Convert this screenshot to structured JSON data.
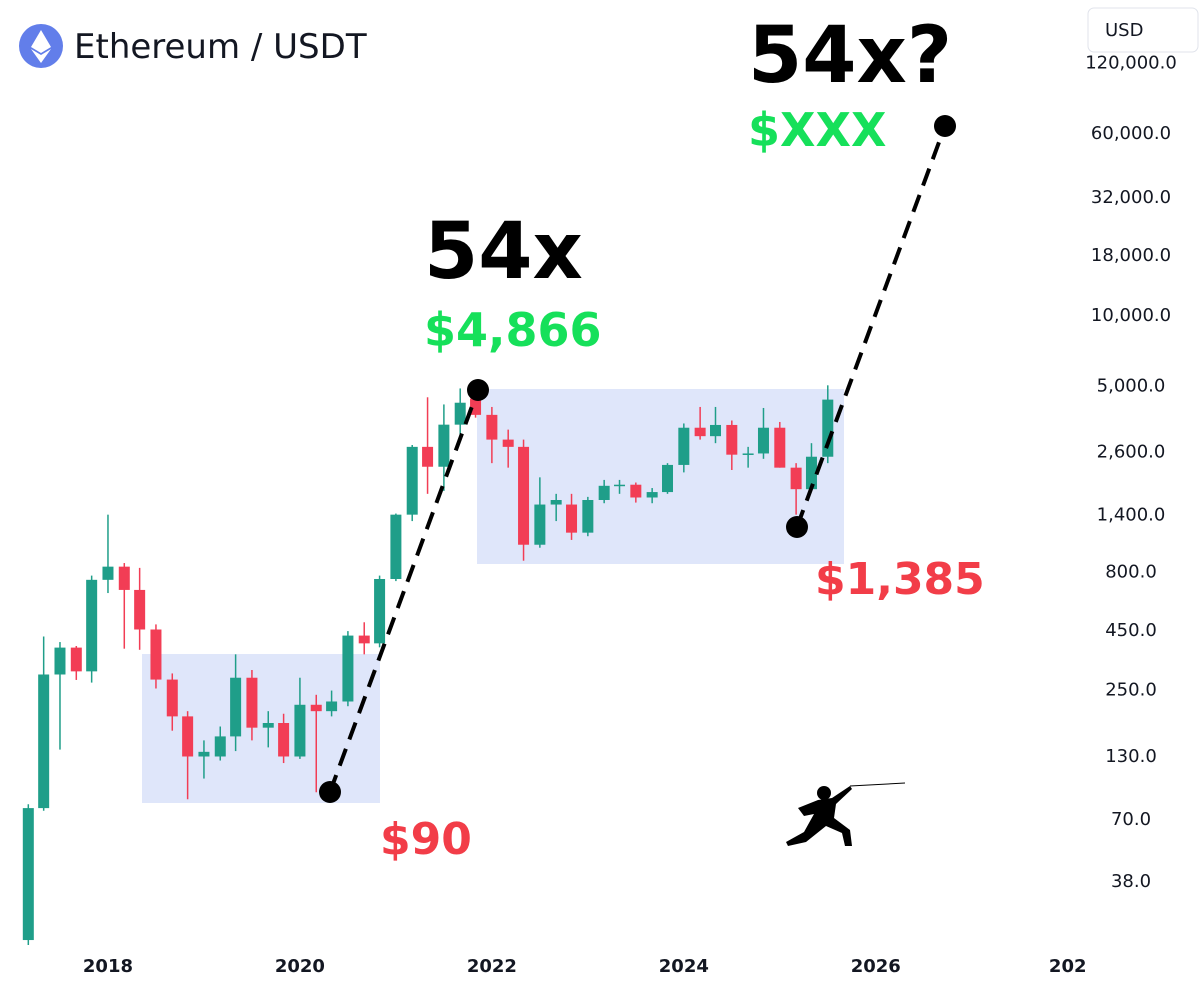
{
  "chart_data": {
    "type": "candlestick",
    "title": "Ethereum / USDT",
    "currency": "USD",
    "log_scale": true,
    "up_color": "#1f9e89",
    "down_color": "#f23d55",
    "x": [
      2017.17,
      2017.33,
      2017.5,
      2017.67,
      2017.83,
      2018,
      2018.17,
      2018.33,
      2018.5,
      2018.67,
      2018.83,
      2019,
      2019.17,
      2019.33,
      2019.5,
      2019.67,
      2019.83,
      2020,
      2020.17,
      2020.33,
      2020.5,
      2020.67,
      2020.83,
      2021,
      2021.17,
      2021.33,
      2021.5,
      2021.67,
      2021.83,
      2022,
      2022.17,
      2022.33,
      2022.5,
      2022.67,
      2022.83,
      2023,
      2023.17,
      2023.33,
      2023.5,
      2023.67,
      2023.83,
      2024,
      2024.17,
      2024.33,
      2024.5,
      2024.67,
      2024.83,
      2025,
      2025.17,
      2025.33,
      2025.5
    ],
    "open": [
      21,
      77,
      287,
      374,
      296,
      729,
      830,
      660,
      447,
      273,
      190,
      128,
      128,
      156,
      278,
      170,
      178,
      128,
      213,
      200,
      220,
      421,
      390,
      735,
      1385,
      2700,
      2220,
      3360,
      4350,
      3700,
      2900,
      2700,
      1030,
      1530,
      1530,
      1160,
      1600,
      1840,
      1860,
      1640,
      1730,
      2260,
      3260,
      3000,
      3350,
      2500,
      2530,
      3260,
      2200,
      1780,
      2450
    ],
    "high": [
      80,
      417,
      395,
      380,
      760,
      1385,
      860,
      820,
      470,
      290,
      200,
      150,
      172,
      350,
      300,
      200,
      195,
      278,
      235,
      245,
      440,
      480,
      760,
      1400,
      2750,
      4400,
      4100,
      4800,
      4866,
      4000,
      3200,
      2900,
      2000,
      1700,
      1700,
      1650,
      1950,
      1950,
      1900,
      1800,
      2300,
      3400,
      4000,
      4000,
      3500,
      2700,
      3960,
      3450,
      2300,
      2800,
      4950
    ],
    "low": [
      20,
      75,
      137,
      272,
      265,
      640,
      370,
      366,
      250,
      165,
      84,
      103,
      123,
      135,
      150,
      140,
      120,
      125,
      90,
      190,
      210,
      350,
      375,
      720,
      1300,
      1700,
      1750,
      3000,
      3600,
      2300,
      2200,
      880,
      1000,
      1300,
      1080,
      1120,
      1550,
      1700,
      1560,
      1550,
      1700,
      2100,
      2900,
      2800,
      2150,
      2200,
      2400,
      2200,
      1385,
      1750,
      2300
    ],
    "close": [
      77,
      287,
      374,
      296,
      729,
      830,
      660,
      447,
      273,
      190,
      128,
      134,
      156,
      278,
      170,
      178,
      128,
      213,
      200,
      220,
      421,
      390,
      735,
      1385,
      2700,
      2220,
      3360,
      4170,
      3700,
      2900,
      2700,
      1030,
      1530,
      1600,
      1160,
      1600,
      1840,
      1860,
      1640,
      1730,
      2260,
      3260,
      3000,
      3350,
      2500,
      2530,
      3260,
      2200,
      1780,
      2450,
      4300
    ],
    "xlim": [
      2016.875,
      2028.18
    ],
    "xticks": [
      2018,
      2020,
      2022,
      2024,
      2026,
      {
        "value": 2028,
        "label": "202"
      }
    ],
    "ylim": [
      20,
      220000
    ],
    "yticks": [
      {
        "value": 120000,
        "label": "120,000.0"
      },
      {
        "value": 60000,
        "label": "60,000.0"
      },
      {
        "value": 32000,
        "label": "32,000.0"
      },
      {
        "value": 18000,
        "label": "18,000.0"
      },
      {
        "value": 10000,
        "label": "10,000.0"
      },
      {
        "value": 5000,
        "label": "5,000.0"
      },
      {
        "value": 2600,
        "label": "2,600.0"
      },
      {
        "value": 1400,
        "label": "1,400.0"
      },
      {
        "value": 800,
        "label": "800.0"
      },
      {
        "value": 450,
        "label": "450.0"
      },
      {
        "value": 250,
        "label": "250.0"
      },
      {
        "value": 130,
        "label": "130.0"
      },
      {
        "value": 70,
        "label": "70.0"
      },
      {
        "value": 38,
        "label": "38.0"
      }
    ],
    "annotations": [
      {
        "text": "54x?",
        "color": "#000000"
      },
      {
        "text": "$XXX",
        "color": "#16e05a"
      },
      {
        "text": "54x",
        "color": "#000000"
      },
      {
        "text": "$4,866",
        "color": "#16e05a"
      },
      {
        "text": "$1,385",
        "color": "#f23d48"
      },
      {
        "text": "$90",
        "color": "#f23d48"
      }
    ]
  }
}
